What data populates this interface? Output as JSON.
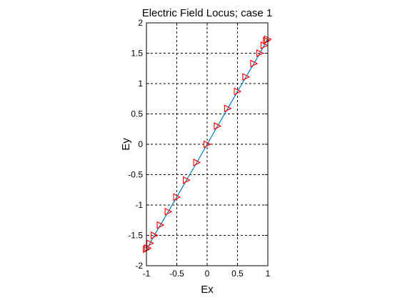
{
  "chart_data": {
    "type": "line",
    "title": "Electric Field Locus; case 1",
    "xlabel": "Ex",
    "ylabel": "Ey",
    "xlim": [
      -1,
      1
    ],
    "ylim": [
      -2,
      2
    ],
    "xticks": [
      -1,
      -0.5,
      0,
      0.5,
      1
    ],
    "xtick_labels": [
      "-1",
      "-0.5",
      "0",
      "0.5",
      "1"
    ],
    "yticks": [
      -2,
      -1.5,
      -1,
      -0.5,
      0,
      0.5,
      1,
      1.5,
      2
    ],
    "ytick_labels": [
      "-2",
      "-1.5",
      "-1",
      "-0.5",
      "0",
      "0.5",
      "1",
      "1.5",
      "2"
    ],
    "grid": true,
    "line_color": "#00c0c0",
    "segment_color": "#0000ff",
    "marker_color": "#ff0000",
    "marker": "triangle-right",
    "points": [
      [
        0.0,
        0.0
      ],
      [
        0.17,
        0.3
      ],
      [
        0.34,
        0.59
      ],
      [
        0.5,
        0.87
      ],
      [
        0.64,
        1.11
      ],
      [
        0.77,
        1.33
      ],
      [
        0.87,
        1.5
      ],
      [
        0.94,
        1.63
      ],
      [
        0.98,
        1.71
      ],
      [
        1.0,
        1.73
      ],
      [
        0.98,
        1.71
      ],
      [
        0.94,
        1.63
      ],
      [
        0.87,
        1.5
      ],
      [
        0.77,
        1.33
      ],
      [
        0.64,
        1.11
      ],
      [
        0.5,
        0.87
      ],
      [
        0.34,
        0.59
      ],
      [
        0.17,
        0.3
      ],
      [
        0.0,
        0.0
      ],
      [
        -0.17,
        -0.3
      ],
      [
        -0.34,
        -0.59
      ],
      [
        -0.5,
        -0.87
      ],
      [
        -0.64,
        -1.11
      ],
      [
        -0.77,
        -1.33
      ],
      [
        -0.87,
        -1.5
      ],
      [
        -0.94,
        -1.63
      ],
      [
        -0.98,
        -1.71
      ],
      [
        -1.0,
        -1.73
      ],
      [
        -0.98,
        -1.71
      ],
      [
        -0.94,
        -1.63
      ],
      [
        -0.87,
        -1.5
      ],
      [
        -0.77,
        -1.33
      ],
      [
        -0.64,
        -1.11
      ],
      [
        -0.5,
        -0.87
      ],
      [
        -0.34,
        -0.59
      ],
      [
        -0.17,
        -0.3
      ]
    ]
  }
}
